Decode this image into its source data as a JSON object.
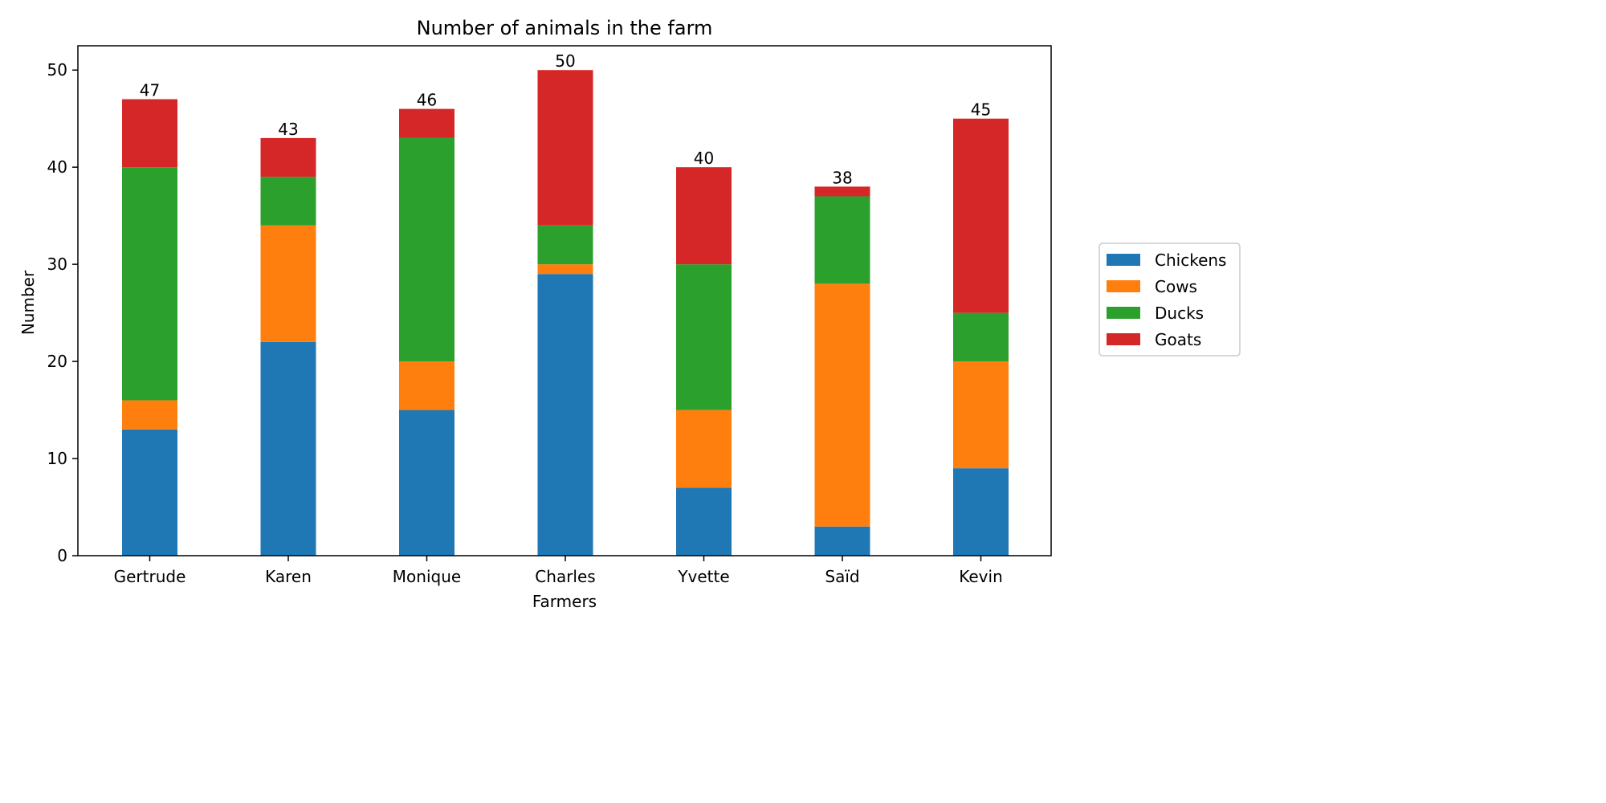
{
  "chart_data": {
    "type": "bar",
    "stacked": true,
    "title": "Number of animals in the farm",
    "xlabel": "Farmers",
    "ylabel": "Number",
    "categories": [
      "Gertrude",
      "Karen",
      "Monique",
      "Charles",
      "Yvette",
      "Saïd",
      "Kevin"
    ],
    "series": [
      {
        "name": "Chickens",
        "color": "#1f77b4",
        "values": [
          13,
          22,
          15,
          29,
          7,
          3,
          9
        ]
      },
      {
        "name": "Cows",
        "color": "#ff7f0e",
        "values": [
          3,
          12,
          5,
          1,
          8,
          25,
          11
        ]
      },
      {
        "name": "Ducks",
        "color": "#2ca02c",
        "values": [
          24,
          5,
          23,
          4,
          15,
          9,
          5
        ]
      },
      {
        "name": "Goats",
        "color": "#d62728",
        "values": [
          7,
          4,
          3,
          16,
          10,
          1,
          20
        ]
      }
    ],
    "totals": [
      "47",
      "43",
      "46",
      "50",
      "40",
      "38",
      "45"
    ],
    "ylim": [
      0,
      52.5
    ],
    "yticks": [
      "0",
      "10",
      "20",
      "30",
      "40",
      "50"
    ],
    "grid": false,
    "legend_position": "right"
  }
}
